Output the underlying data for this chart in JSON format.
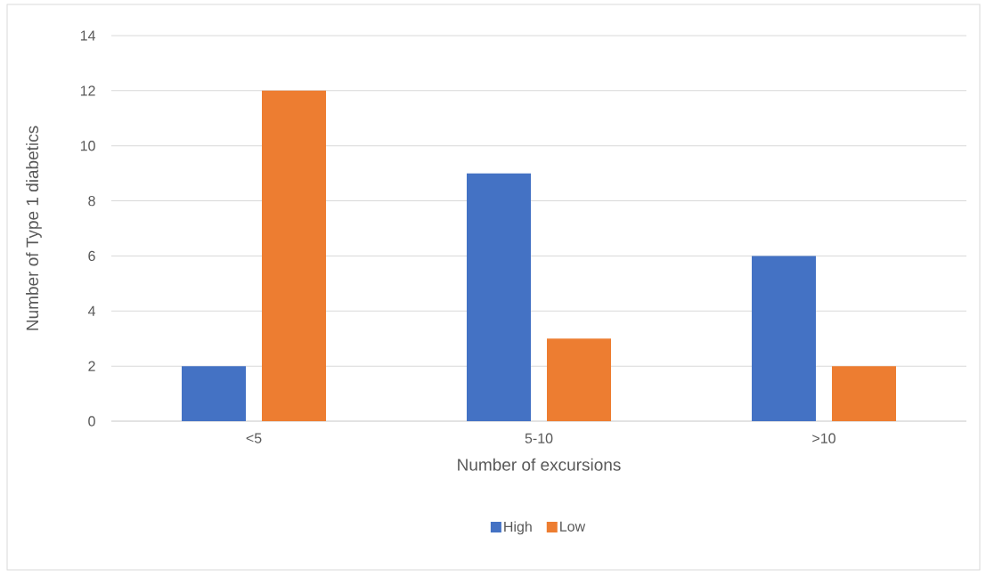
{
  "chart_data": {
    "type": "bar",
    "xlabel": "Number of excursions",
    "ylabel": "Number of Type 1 diabetics",
    "categories": [
      "<5",
      "5-10",
      ">10"
    ],
    "series": [
      {
        "name": "High",
        "color": "#4472c4",
        "values": [
          2,
          9,
          6
        ]
      },
      {
        "name": "Low",
        "color": "#ed7d31",
        "values": [
          12,
          3,
          2
        ]
      }
    ],
    "ylim": [
      0,
      14
    ],
    "yticks": [
      0,
      2,
      4,
      6,
      8,
      10,
      12,
      14
    ],
    "grid": "y",
    "legend": "bottom"
  }
}
